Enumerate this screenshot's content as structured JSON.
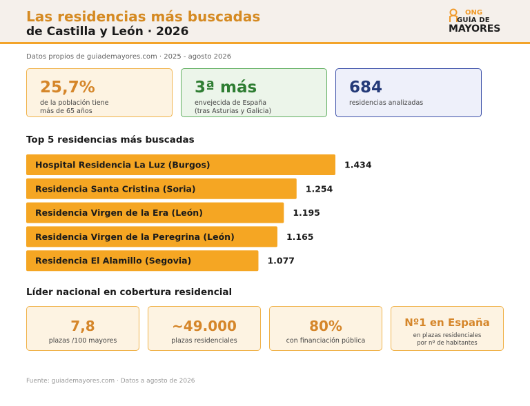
{
  "header": {
    "title_line1": "Las residencias más buscadas",
    "title_line2": "de Castilla y León · 2026",
    "logo": {
      "ong": "ONG",
      "line1": "GUÍA DE",
      "line2": "MAYORES"
    }
  },
  "subtitle": "Datos propios de guiademayores.com · 2025 - agosto 2026",
  "kpis": [
    {
      "value": "25,7%",
      "desc": "de la población tiene\nmás de 65 años",
      "color": "#d5862a"
    },
    {
      "value": "3ª más",
      "desc": "envejecida de España\n(tras Asturias y Galicia)",
      "color": "#2e7d32"
    },
    {
      "value": "684",
      "desc": "residencias analizadas",
      "color": "#243a78"
    }
  ],
  "section_top5": "Top 5 residencias más buscadas",
  "chart_data": {
    "type": "bar",
    "orientation": "horizontal",
    "categories": [
      "Hospital Residencia La Luz (Burgos)",
      "Residencia Santa Cristina (Soria)",
      "Residencia Virgen de la Era (León)",
      "Residencia Virgen de la Peregrina (León)",
      "Residencia El Alamillo (Segovia)"
    ],
    "values": [
      1434,
      1254,
      1195,
      1165,
      1077
    ],
    "value_labels": [
      "1.434",
      "1.254",
      "1.195",
      "1.165",
      "1.077"
    ],
    "bar_color": "#f5a623"
  },
  "section_leader": "Líder nacional en cobertura residencial",
  "stats": [
    {
      "value": "7,8",
      "desc": "plazas /100 mayores"
    },
    {
      "value": "~49.000",
      "desc": "plazas residenciales"
    },
    {
      "value": "80%",
      "desc": "con financiación pública"
    },
    {
      "value": "Nº1 en España",
      "desc": "en plazas residenciales\npor nº de habitantes"
    }
  ],
  "source": "Fuente: guiademayores.com · Datos a agosto de 2026"
}
